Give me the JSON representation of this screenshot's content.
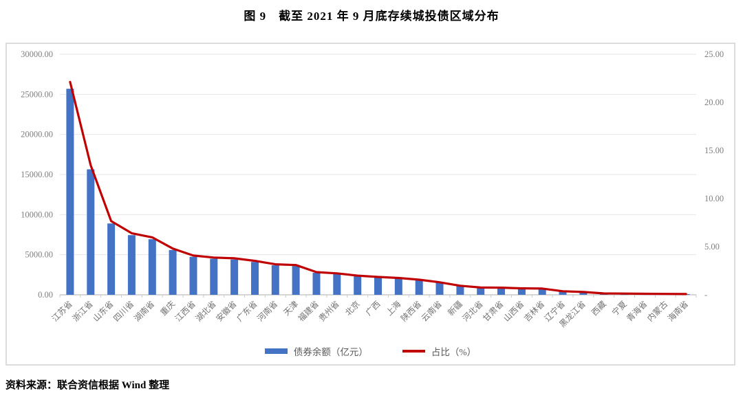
{
  "title": "图 9　截至 2021 年 9 月底存续城投债区域分布",
  "source_note": "资料来源：联合资信根据 Wind 整理",
  "chart_data": {
    "type": "bar",
    "subtype": "bar-line combo, dual axis",
    "title": "图 9　截至 2021 年 9 月底存续城投债区域分布",
    "categories": [
      "江苏省",
      "浙江省",
      "山东省",
      "四川省",
      "湖南省",
      "重庆",
      "江西省",
      "湖北省",
      "安徽省",
      "广东省",
      "河南省",
      "天津",
      "福建省",
      "贵州省",
      "北京",
      "广西",
      "上海",
      "陕西省",
      "云南省",
      "新疆",
      "河北省",
      "甘肃省",
      "山西省",
      "吉林省",
      "辽宁省",
      "黑龙江省",
      "西藏",
      "宁夏",
      "青海省",
      "内蒙古",
      "海南省"
    ],
    "series": [
      {
        "name": "债券余额（亿元）",
        "type": "bar",
        "axis": "left",
        "color": "#4472C4",
        "values": [
          25700,
          15650,
          8900,
          7440,
          6930,
          5590,
          4740,
          4500,
          4400,
          4100,
          3680,
          3590,
          2740,
          2590,
          2310,
          2160,
          2030,
          1820,
          1510,
          1090,
          880,
          860,
          780,
          760,
          430,
          340,
          160,
          150,
          130,
          110,
          90
        ]
      },
      {
        "name": "占比（%）",
        "type": "line",
        "axis": "right",
        "color": "#C00000",
        "values": [
          22.12,
          13.47,
          7.66,
          6.4,
          5.97,
          4.81,
          4.08,
          3.87,
          3.79,
          3.53,
          3.17,
          3.09,
          2.36,
          2.23,
          1.99,
          1.86,
          1.75,
          1.57,
          1.3,
          0.94,
          0.76,
          0.74,
          0.67,
          0.65,
          0.37,
          0.29,
          0.14,
          0.13,
          0.11,
          0.09,
          0.08
        ]
      }
    ],
    "left_axis": {
      "min": 0,
      "max": 30000,
      "ticks": [
        "30000.00",
        "25000.00",
        "20000.00",
        "15000.00",
        "10000.00",
        "5000.00",
        "0.00"
      ]
    },
    "right_axis": {
      "min": 0,
      "max": 25,
      "ticks": [
        "25.00",
        "20.00",
        "15.00",
        "10.00",
        "5.00",
        "-"
      ]
    },
    "grid": "horizontal, light gray, follows left axis",
    "legend_position": "bottom-center inside frame"
  }
}
